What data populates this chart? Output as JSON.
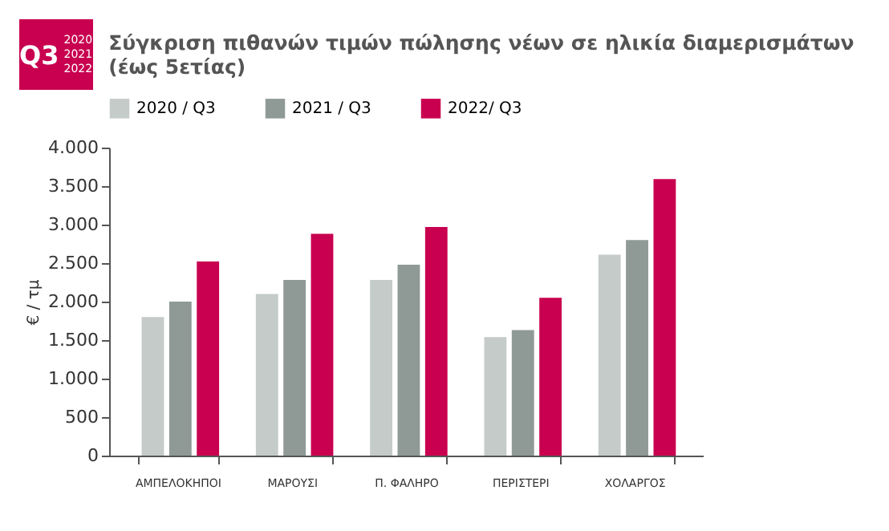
{
  "chart_data": {
    "type": "bar",
    "title": "Σύγκριση πιθανών τιμών πώλησης νέων σε ηλικία διαμερισμάτων (έως 5ετίας)",
    "annotations": [
      "Q3",
      "2020",
      "2021",
      "2022"
    ],
    "ylabel": "€ / τμ",
    "categories": [
      "ΑΜΠΕΛΟΚΗΠΟΙ",
      "ΜΑΡΟΥΣΙ",
      "Π. ΦΑΛΗΡΟ",
      "ΠΕΡΙΣΤΕΡΙ",
      "ΧΟΛΑΡΓΟΣ"
    ],
    "series": [
      {
        "name": "2020 / Q3",
        "color": "#c5cbc9",
        "values": [
          1800,
          2100,
          2280,
          1540,
          2610
        ]
      },
      {
        "name": "2021 / Q3",
        "color": "#8f9a97",
        "values": [
          2000,
          2280,
          2480,
          1630,
          2800
        ]
      },
      {
        "name": "2022/ Q3",
        "color": "#c8004f",
        "values": [
          2520,
          2880,
          2970,
          2050,
          3590
        ]
      }
    ],
    "ylim": [
      0,
      4000
    ],
    "yticks": [
      {
        "value": 0,
        "label": "0"
      },
      {
        "value": 500,
        "label": "500"
      },
      {
        "value": 1000,
        "label": "1.000"
      },
      {
        "value": 1500,
        "label": "1.500"
      },
      {
        "value": 2000,
        "label": "2.000"
      },
      {
        "value": 2500,
        "label": "2.500"
      },
      {
        "value": 3000,
        "label": "3.000"
      },
      {
        "value": 3500,
        "label": "3.500"
      },
      {
        "value": 4000,
        "label": "4.000"
      }
    ],
    "grid": false,
    "legend": "top"
  }
}
